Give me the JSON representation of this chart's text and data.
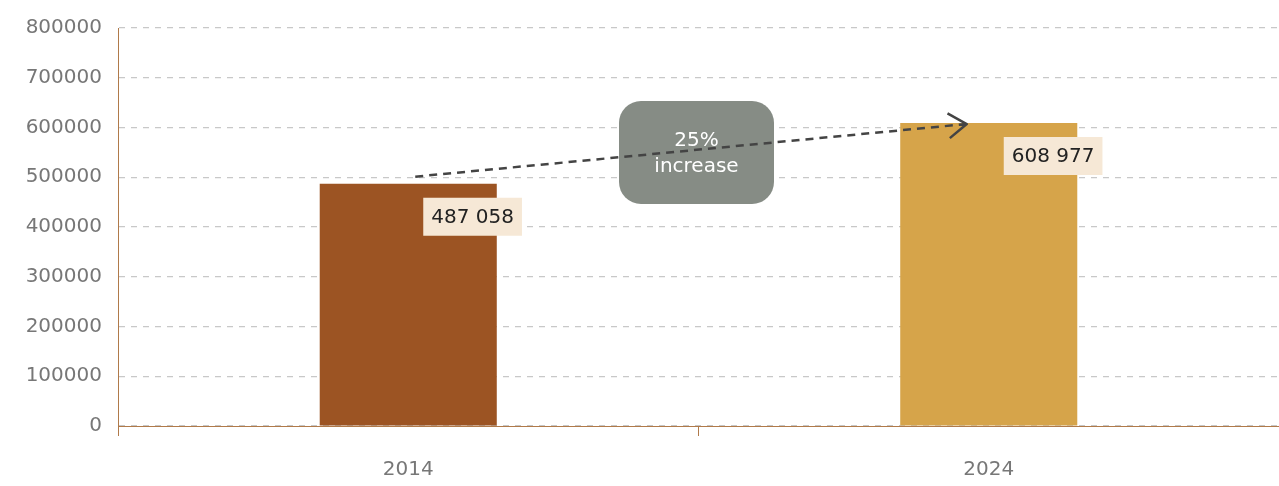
{
  "chart_data": {
    "type": "bar",
    "categories": [
      "2014",
      "2024"
    ],
    "values": [
      487058,
      608977
    ],
    "colors": [
      "#9c5423",
      "#d6a44a"
    ],
    "value_labels": [
      "487 058",
      "608 977"
    ],
    "ylim": [
      0,
      800000
    ],
    "yticks": [
      0,
      100000,
      200000,
      300000,
      400000,
      500000,
      600000,
      700000,
      800000
    ],
    "grid": "y",
    "annotations": [
      "25% increase"
    ]
  }
}
